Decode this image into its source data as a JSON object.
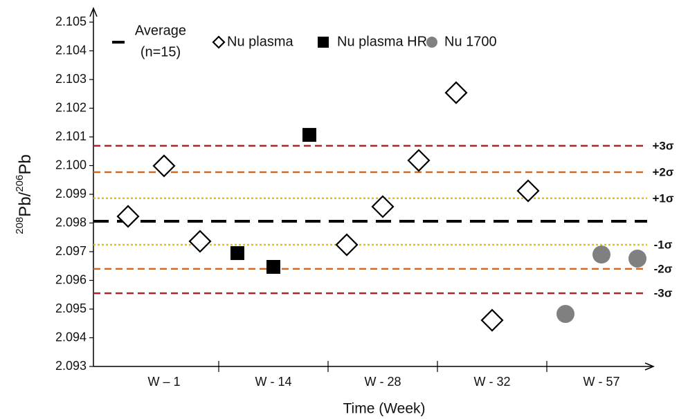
{
  "chart_data": {
    "type": "scatter",
    "ylabel": [
      {
        "text": "208",
        "sup": true
      },
      {
        "text": "Pb/",
        "sup": false
      },
      {
        "text": "206",
        "sup": true
      },
      {
        "text": "Pb",
        "sup": false
      }
    ],
    "xlabel": "Time (Week)",
    "categories": [
      "W – 1",
      "W - 14",
      "W - 28",
      "W - 32",
      "W - 57"
    ],
    "ylim": [
      2.093,
      2.105
    ],
    "yticks": [
      2.093,
      2.094,
      2.095,
      2.096,
      2.097,
      2.098,
      2.099,
      {
        "value": 2.1,
        "label": "2.100"
      },
      2.101,
      2.102,
      2.103,
      2.104,
      2.105
    ],
    "average": {
      "name": [
        "Average",
        "(n=15)"
      ],
      "value": 2.09806,
      "color": "#000000"
    },
    "reference_lines": [
      {
        "label": "+3σ",
        "value": 2.10069,
        "color": "#b22222",
        "style": "dashed"
      },
      {
        "label": "+2σ",
        "value": 2.09977,
        "color": "#d2691e",
        "style": "dashed"
      },
      {
        "label": "+1σ",
        "value": 2.09886,
        "color": "#e6c300",
        "style": "dotted"
      },
      {
        "label": "-1σ",
        "value": 2.09724,
        "color": "#e6c300",
        "style": "dotted"
      },
      {
        "label": "-2σ",
        "value": 2.0964,
        "color": "#d2691e",
        "style": "dashed"
      },
      {
        "label": "-3σ",
        "value": 2.09555,
        "color": "#b22222",
        "style": "dashed"
      }
    ],
    "series": [
      {
        "name": "Nu plasma",
        "marker": "diamond",
        "color": "#000000",
        "values": [
          [
            2.09823,
            2.09999,
            2.09736
          ],
          [
            null,
            null,
            null
          ],
          [
            2.09724,
            2.09857,
            2.10018
          ],
          [
            2.10254,
            2.09461,
            2.09912
          ],
          [
            null,
            null,
            null
          ]
        ]
      },
      {
        "name": "Nu plasma HR",
        "marker": "square",
        "color": "#000000",
        "values": [
          [
            null,
            null,
            null
          ],
          [
            2.09695,
            2.09647,
            2.10107
          ],
          [
            null,
            null,
            null
          ],
          [
            null,
            null,
            null
          ],
          [
            null,
            null,
            null
          ]
        ]
      },
      {
        "name": "Nu 1700",
        "marker": "circle",
        "color": "#808080",
        "values": [
          [
            null,
            null,
            null
          ],
          [
            null,
            null,
            null
          ],
          [
            null,
            null,
            null
          ],
          [
            null,
            null,
            null
          ],
          [
            2.09483,
            2.0969,
            2.09676
          ]
        ]
      }
    ]
  }
}
